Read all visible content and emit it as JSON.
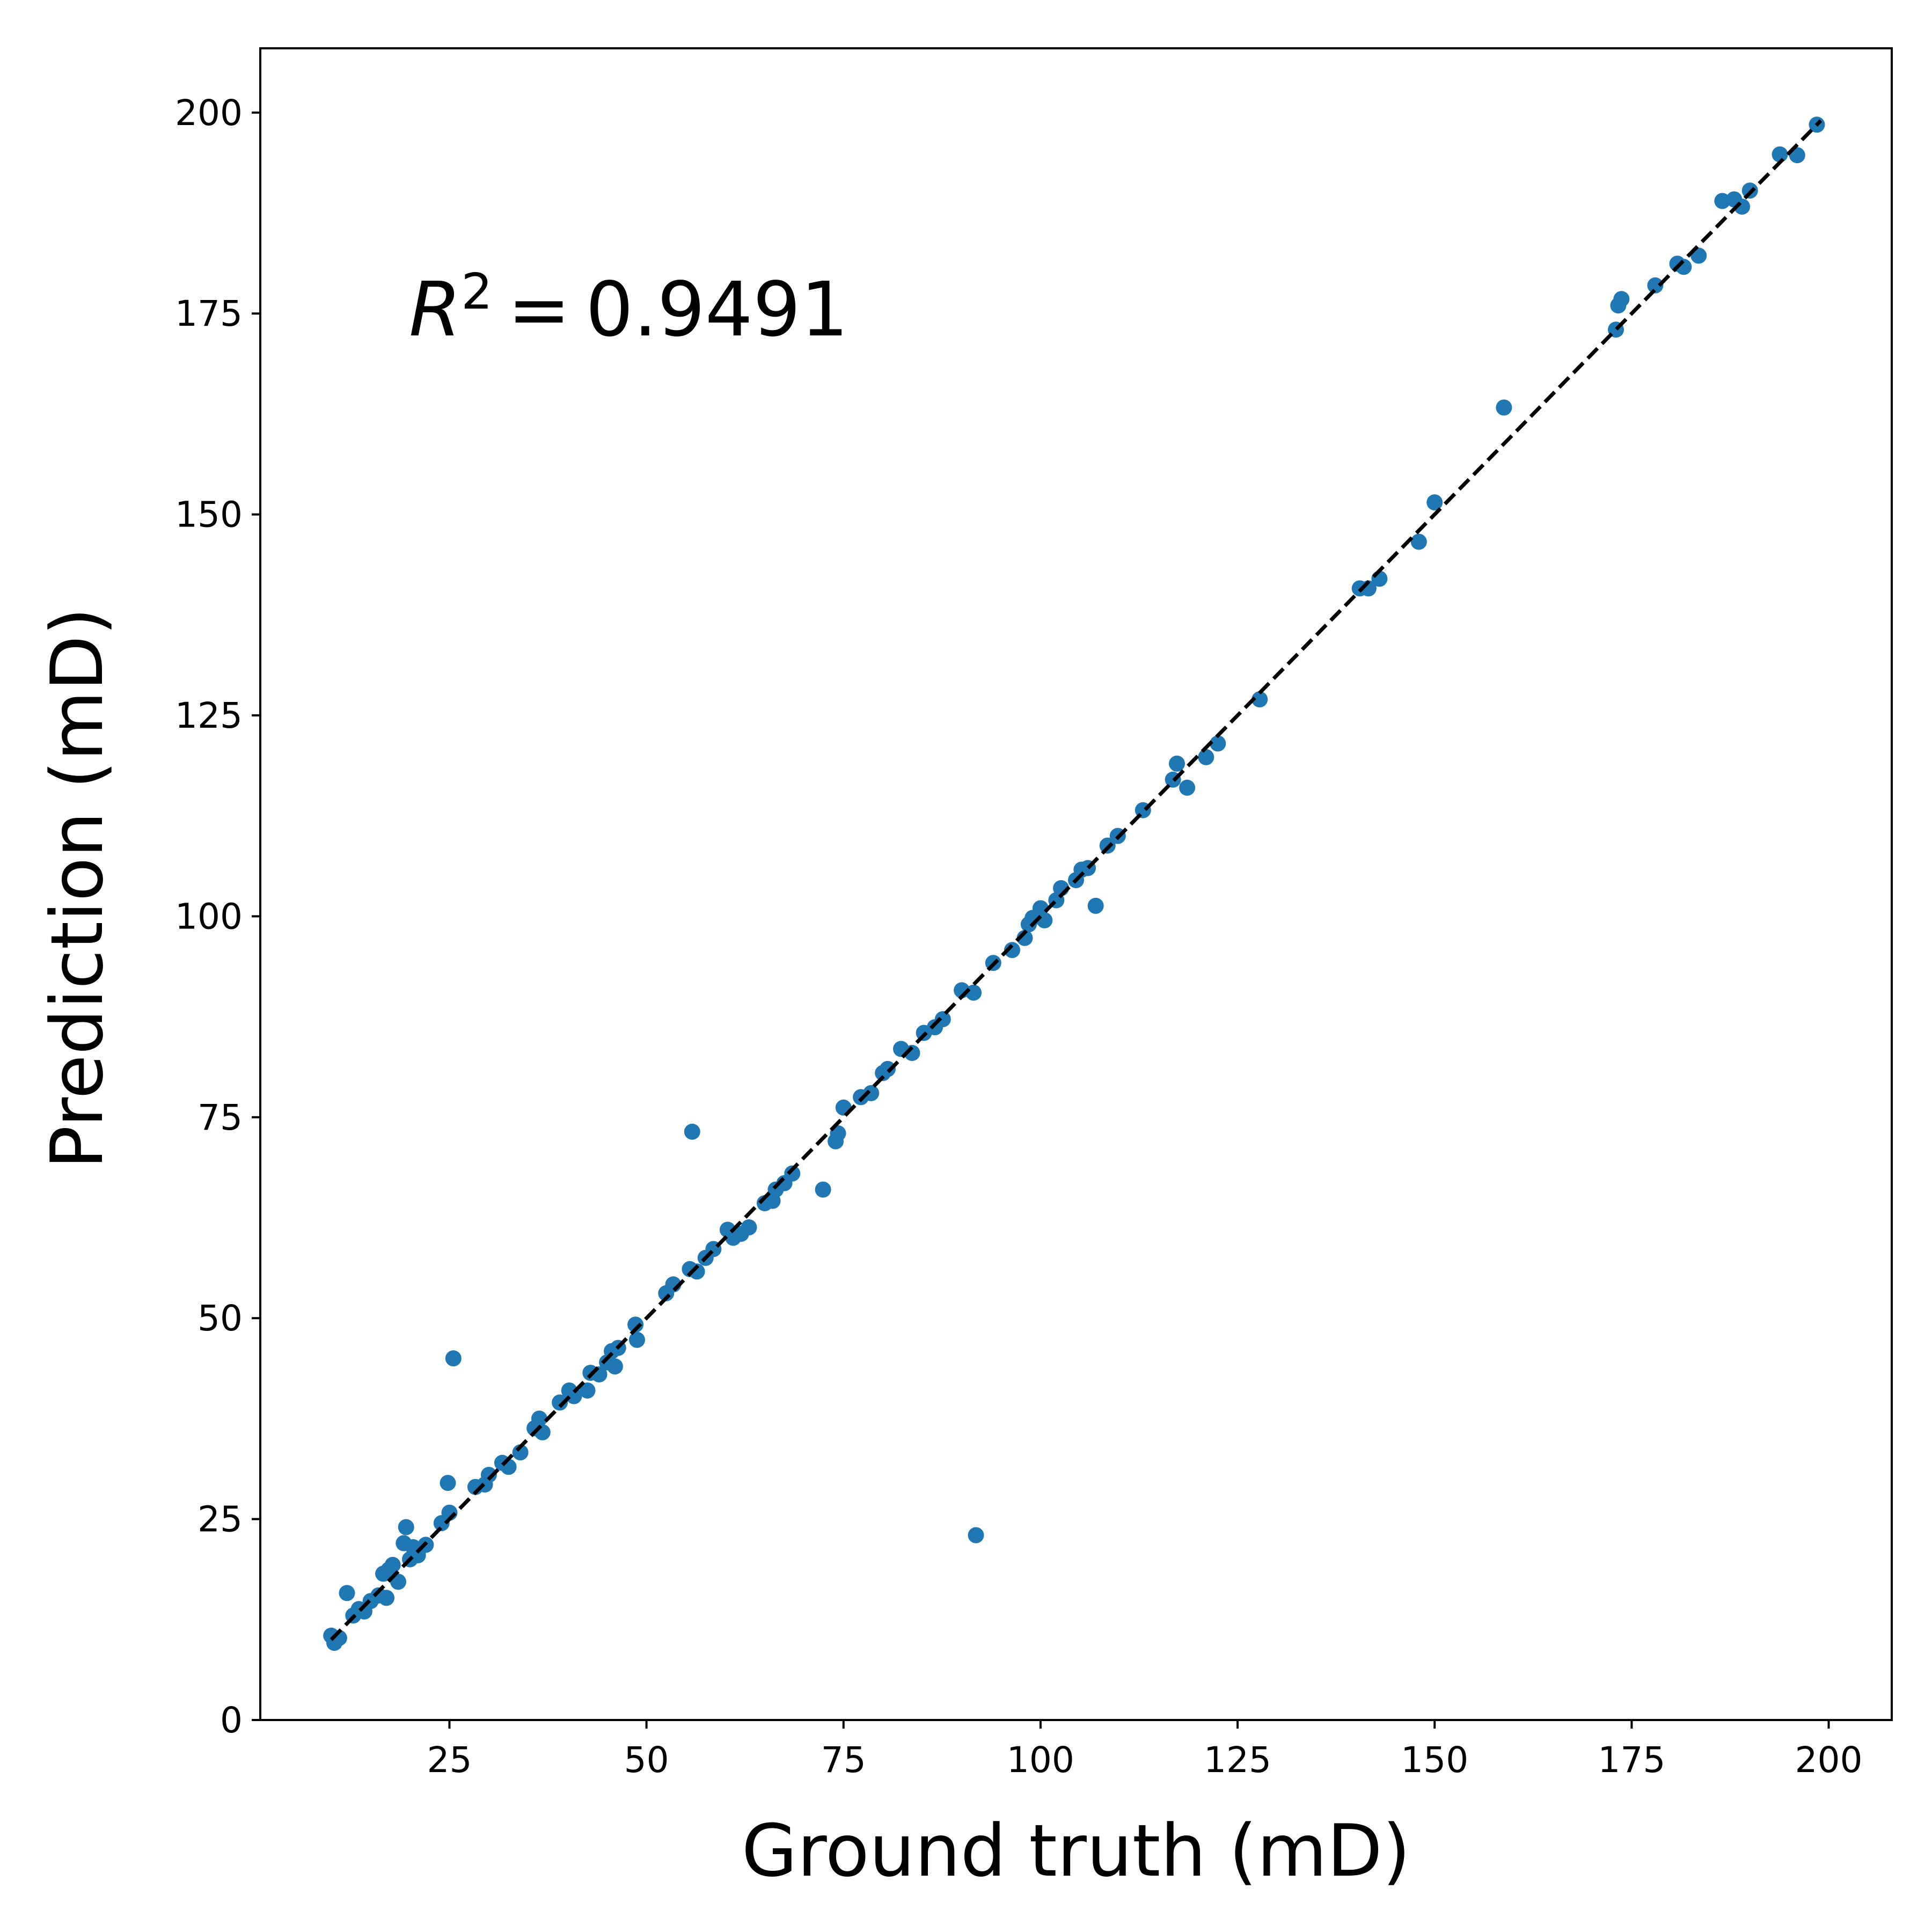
{
  "chart_data": {
    "type": "scatter",
    "xlabel": "Ground truth (mD)",
    "ylabel": "Prediction (mD)",
    "xlim": [
      1,
      208
    ],
    "ylim": [
      0,
      208
    ],
    "x_ticks": [
      25,
      50,
      75,
      100,
      125,
      150,
      175,
      200
    ],
    "y_ticks": [
      0,
      25,
      50,
      75,
      100,
      125,
      150,
      175,
      200
    ],
    "grid": false,
    "annotation": {
      "symbol": "R",
      "exponent": "2",
      "equals": "=",
      "value": "0.9491"
    },
    "reference_line": {
      "style": "dashed",
      "color": "#000000",
      "x": [
        10,
        199
      ],
      "y": [
        10,
        199
      ]
    },
    "series": [
      {
        "color": "#1f77b4",
        "points": [
          [
            10.0,
            10.5
          ],
          [
            10.4,
            9.6
          ],
          [
            11.0,
            10.2
          ],
          [
            12.0,
            15.8
          ],
          [
            12.8,
            13.0
          ],
          [
            13.5,
            13.8
          ],
          [
            14.2,
            13.5
          ],
          [
            15.0,
            14.8
          ],
          [
            16.0,
            15.5
          ],
          [
            16.6,
            18.2
          ],
          [
            17.0,
            15.2
          ],
          [
            17.3,
            18.7
          ],
          [
            17.8,
            19.3
          ],
          [
            18.5,
            17.2
          ],
          [
            19.2,
            22.0
          ],
          [
            19.5,
            24.0
          ],
          [
            20.0,
            20.0
          ],
          [
            20.4,
            21.5
          ],
          [
            21.0,
            20.5
          ],
          [
            22.0,
            21.8
          ],
          [
            24.0,
            24.5
          ],
          [
            24.8,
            29.5
          ],
          [
            25.0,
            25.8
          ],
          [
            25.5,
            45.0
          ],
          [
            28.3,
            29.0
          ],
          [
            29.5,
            29.3
          ],
          [
            30.0,
            30.5
          ],
          [
            31.7,
            32.0
          ],
          [
            32.5,
            31.5
          ],
          [
            34.0,
            33.3
          ],
          [
            35.8,
            36.3
          ],
          [
            36.4,
            37.5
          ],
          [
            36.8,
            35.8
          ],
          [
            39.0,
            39.5
          ],
          [
            40.2,
            41.0
          ],
          [
            40.8,
            40.3
          ],
          [
            42.5,
            41.0
          ],
          [
            42.9,
            43.2
          ],
          [
            44.0,
            43.0
          ],
          [
            45.0,
            44.5
          ],
          [
            45.6,
            45.9
          ],
          [
            46.0,
            44.0
          ],
          [
            46.4,
            46.3
          ],
          [
            48.6,
            49.2
          ],
          [
            48.8,
            47.3
          ],
          [
            52.5,
            53.1
          ],
          [
            53.4,
            54.2
          ],
          [
            55.5,
            56.1
          ],
          [
            55.8,
            73.2
          ],
          [
            56.4,
            55.8
          ],
          [
            57.5,
            57.5
          ],
          [
            58.5,
            58.6
          ],
          [
            60.3,
            61.0
          ],
          [
            61.0,
            60.0
          ],
          [
            62.0,
            60.5
          ],
          [
            63.0,
            61.3
          ],
          [
            65.0,
            64.3
          ],
          [
            66.0,
            64.6
          ],
          [
            66.4,
            66.0
          ],
          [
            67.5,
            66.8
          ],
          [
            68.5,
            68.0
          ],
          [
            72.4,
            66.0
          ],
          [
            74.0,
            72.0
          ],
          [
            74.3,
            73.0
          ],
          [
            75.0,
            76.2
          ],
          [
            77.2,
            77.5
          ],
          [
            78.5,
            78.0
          ],
          [
            80.0,
            80.5
          ],
          [
            80.6,
            81.0
          ],
          [
            82.3,
            83.5
          ],
          [
            83.7,
            83.0
          ],
          [
            85.2,
            85.5
          ],
          [
            86.6,
            86.2
          ],
          [
            87.6,
            87.2
          ],
          [
            90.0,
            90.8
          ],
          [
            91.5,
            90.5
          ],
          [
            91.8,
            23.0
          ],
          [
            94.0,
            94.2
          ],
          [
            96.4,
            95.8
          ],
          [
            98.0,
            97.3
          ],
          [
            98.5,
            99.0
          ],
          [
            99.0,
            99.8
          ],
          [
            100.0,
            101.0
          ],
          [
            100.5,
            99.5
          ],
          [
            102.0,
            102.0
          ],
          [
            102.6,
            103.5
          ],
          [
            104.5,
            104.5
          ],
          [
            105.2,
            105.8
          ],
          [
            106.0,
            106.0
          ],
          [
            107.0,
            101.3
          ],
          [
            108.5,
            108.8
          ],
          [
            109.8,
            110.0
          ],
          [
            113.0,
            113.2
          ],
          [
            116.8,
            117.0
          ],
          [
            117.3,
            119.0
          ],
          [
            118.6,
            116.0
          ],
          [
            121.0,
            119.8
          ],
          [
            122.5,
            121.5
          ],
          [
            127.8,
            127.0
          ],
          [
            140.5,
            140.8
          ],
          [
            141.6,
            140.8
          ],
          [
            143.0,
            142.0
          ],
          [
            148.0,
            146.6
          ],
          [
            150.0,
            151.5
          ],
          [
            158.8,
            163.3
          ],
          [
            173.0,
            173.0
          ],
          [
            173.3,
            176.0
          ],
          [
            173.7,
            176.8
          ],
          [
            178.0,
            178.5
          ],
          [
            180.8,
            181.2
          ],
          [
            181.6,
            180.8
          ],
          [
            183.5,
            182.2
          ],
          [
            186.5,
            189.0
          ],
          [
            188.0,
            189.2
          ],
          [
            189.0,
            188.3
          ],
          [
            190.0,
            190.3
          ],
          [
            193.8,
            194.8
          ],
          [
            196.0,
            194.7
          ],
          [
            198.5,
            198.5
          ]
        ]
      }
    ]
  }
}
